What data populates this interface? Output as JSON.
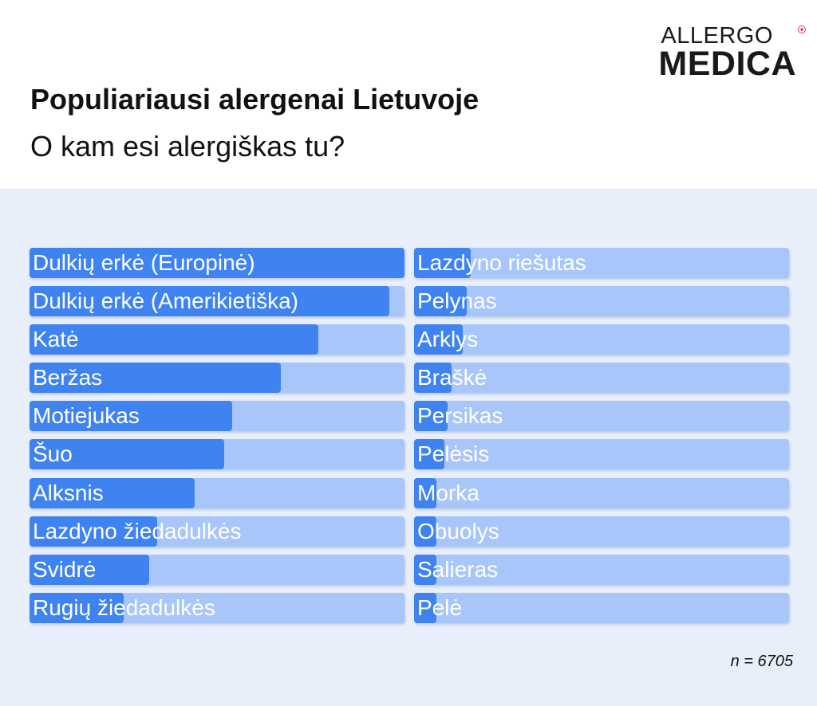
{
  "logo": {
    "line1": "ALLERGO",
    "line2": "MEDICA"
  },
  "colors": {
    "bar_fill": "#3f83f1",
    "bar_track": "#a9c6fa",
    "panel_bg": "#e8effa",
    "logo_mark": "#e0354b"
  },
  "chart_data": {
    "type": "bar",
    "orientation": "horizontal",
    "title": "Populiariausi alergenai Lietuvoje",
    "subtitle": "O kam esi alergiškas tu?",
    "note": "n = 6705",
    "xlim": [
      0,
      100
    ],
    "columns": [
      {
        "categories": [
          "Dulkių erkė (Europinė)",
          "Dulkių erkė (Amerikietiška)",
          "Katė",
          "Beržas",
          "Motiejukas",
          "Šuo",
          "Alksnis",
          "Lazdyno žiedadulkės",
          "Svidrė",
          "Rugių žiedadulkės"
        ],
        "values": [
          100,
          96,
          77,
          67,
          54,
          52,
          44,
          34,
          32,
          25
        ]
      },
      {
        "categories": [
          "Lazdyno riešutas",
          "Pelynas",
          "Arklys",
          "Braškė",
          "Persikas",
          "Pelėsis",
          "Morka",
          "Obuolys",
          "Salieras",
          "Pelė"
        ],
        "values": [
          15,
          14,
          13,
          10,
          9,
          8,
          6,
          6,
          6,
          6
        ]
      }
    ]
  }
}
